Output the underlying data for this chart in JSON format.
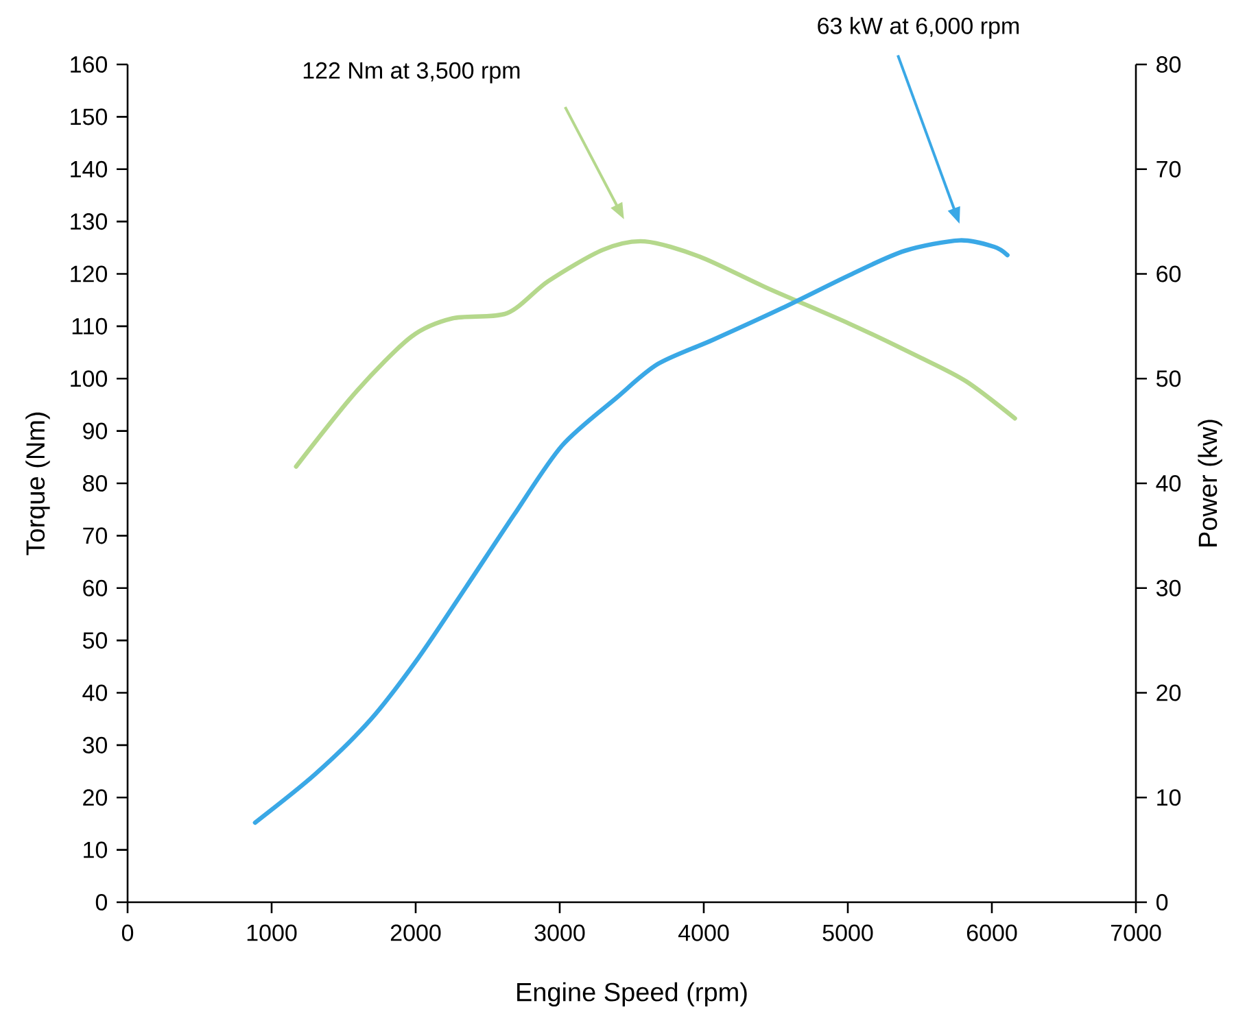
{
  "chart_data": {
    "type": "line",
    "xlabel": "Engine Speed (rpm)",
    "ylabel": "Torque (Nm)",
    "y2label": "Power (kw)",
    "xlim": [
      0,
      7000
    ],
    "xticks": [
      0,
      1000,
      2000,
      3000,
      4000,
      5000,
      6000,
      7000
    ],
    "ylim": [
      0,
      160
    ],
    "yticks": [
      0,
      10,
      20,
      30,
      40,
      50,
      60,
      70,
      80,
      90,
      100,
      110,
      120,
      130,
      140,
      150,
      160
    ],
    "y2lim": [
      0,
      80
    ],
    "y2ticks": [
      0,
      10,
      20,
      30,
      40,
      50,
      60,
      70,
      80
    ],
    "series": [
      {
        "color": "#b5d88c",
        "x": [
          1170,
          1590,
          1970,
          2255,
          2635,
          2920,
          3300,
          3590,
          3970,
          4440,
          5010,
          5490,
          5820,
          6160
        ],
        "values": [
          83.2,
          97.6,
          108,
          111.5,
          112.5,
          118.6,
          124.6,
          126.2,
          123.3,
          117.3,
          110.5,
          104.2,
          99.5,
          92.4
        ]
      },
      {
        "color": "#3aa8e6",
        "axis": "y2",
        "x": [
          885,
          1300,
          1685,
          2017,
          2350,
          2683,
          3016,
          3397,
          3682,
          4063,
          4539,
          5014,
          5395,
          5776,
          6013,
          6108
        ],
        "values": [
          7.6,
          12.2,
          17.4,
          23.3,
          30.1,
          37.0,
          43.6,
          48.2,
          51.4,
          53.7,
          56.7,
          59.9,
          62.2,
          63.2,
          62.6,
          61.8
        ]
      }
    ],
    "annotations": [
      "122 Nm at 3,500 rpm",
      "63 kW at 6,000 rpm"
    ]
  }
}
